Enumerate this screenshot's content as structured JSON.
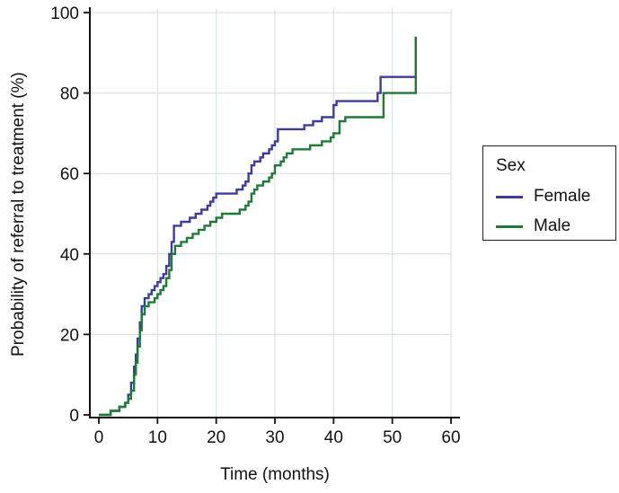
{
  "chart_data": {
    "type": "line",
    "subtype": "step",
    "title": "",
    "xlabel": "Time (months)",
    "ylabel": "Probability of referral to treatment (%)",
    "xlim": [
      0,
      60
    ],
    "ylim": [
      0,
      100
    ],
    "xticks": [
      0,
      10,
      20,
      30,
      40,
      50,
      60
    ],
    "yticks": [
      0,
      20,
      40,
      60,
      80,
      100
    ],
    "grid": true,
    "grid_color": "#d3dce6",
    "axis_color": "#111111",
    "legend_title": "Sex",
    "legend_position": "right",
    "series": [
      {
        "name": "Female",
        "color": "#3c3c9e",
        "points": [
          [
            0,
            0
          ],
          [
            2,
            1
          ],
          [
            3.5,
            2
          ],
          [
            4.5,
            3
          ],
          [
            5,
            5
          ],
          [
            5.5,
            8
          ],
          [
            6,
            12
          ],
          [
            6.3,
            15
          ],
          [
            6.6,
            19
          ],
          [
            7,
            23
          ],
          [
            7.3,
            27
          ],
          [
            7.8,
            29
          ],
          [
            8.5,
            30
          ],
          [
            9,
            31
          ],
          [
            9.5,
            32
          ],
          [
            10,
            33
          ],
          [
            10.5,
            34
          ],
          [
            11,
            35
          ],
          [
            11.5,
            37
          ],
          [
            12,
            40
          ],
          [
            12.4,
            43
          ],
          [
            12.8,
            47
          ],
          [
            14,
            48
          ],
          [
            15.5,
            49
          ],
          [
            16.5,
            50
          ],
          [
            17.5,
            51
          ],
          [
            18.5,
            52
          ],
          [
            19,
            53
          ],
          [
            19.5,
            54
          ],
          [
            20,
            55
          ],
          [
            23.5,
            56
          ],
          [
            24.5,
            57
          ],
          [
            25,
            58
          ],
          [
            25.5,
            60
          ],
          [
            26,
            62
          ],
          [
            26.5,
            63
          ],
          [
            27.5,
            64
          ],
          [
            28,
            65
          ],
          [
            29,
            66
          ],
          [
            29.5,
            67
          ],
          [
            30,
            68
          ],
          [
            30.5,
            71
          ],
          [
            35,
            72
          ],
          [
            36.5,
            73
          ],
          [
            38,
            74
          ],
          [
            40,
            77
          ],
          [
            40.5,
            78
          ],
          [
            47.5,
            80
          ],
          [
            48,
            84
          ],
          [
            54,
            94
          ]
        ]
      },
      {
        "name": "Male",
        "color": "#1e7a34",
        "points": [
          [
            0,
            0
          ],
          [
            2,
            1
          ],
          [
            3.5,
            2
          ],
          [
            4.5,
            3
          ],
          [
            5,
            4
          ],
          [
            5.5,
            6
          ],
          [
            6,
            10
          ],
          [
            6.3,
            13
          ],
          [
            6.6,
            17
          ],
          [
            7,
            21
          ],
          [
            7.3,
            25
          ],
          [
            7.8,
            27
          ],
          [
            8.5,
            28
          ],
          [
            9.5,
            29
          ],
          [
            10,
            30
          ],
          [
            10.5,
            31
          ],
          [
            11,
            32
          ],
          [
            11.5,
            34
          ],
          [
            12,
            36
          ],
          [
            12.4,
            40
          ],
          [
            13,
            42
          ],
          [
            14,
            43
          ],
          [
            15,
            44
          ],
          [
            16,
            45
          ],
          [
            17,
            46
          ],
          [
            18,
            47
          ],
          [
            19,
            48
          ],
          [
            20,
            49
          ],
          [
            21,
            50
          ],
          [
            24,
            51
          ],
          [
            25,
            52
          ],
          [
            25.5,
            53
          ],
          [
            26,
            55
          ],
          [
            26.5,
            56
          ],
          [
            27,
            57
          ],
          [
            28,
            58
          ],
          [
            29,
            59
          ],
          [
            29.5,
            60
          ],
          [
            30,
            62
          ],
          [
            31,
            63
          ],
          [
            31.5,
            64
          ],
          [
            32,
            65
          ],
          [
            33,
            66
          ],
          [
            36,
            67
          ],
          [
            38,
            68
          ],
          [
            39.5,
            69
          ],
          [
            40,
            70
          ],
          [
            41,
            73
          ],
          [
            42,
            74
          ],
          [
            48.5,
            80
          ],
          [
            54,
            94
          ]
        ]
      }
    ]
  }
}
